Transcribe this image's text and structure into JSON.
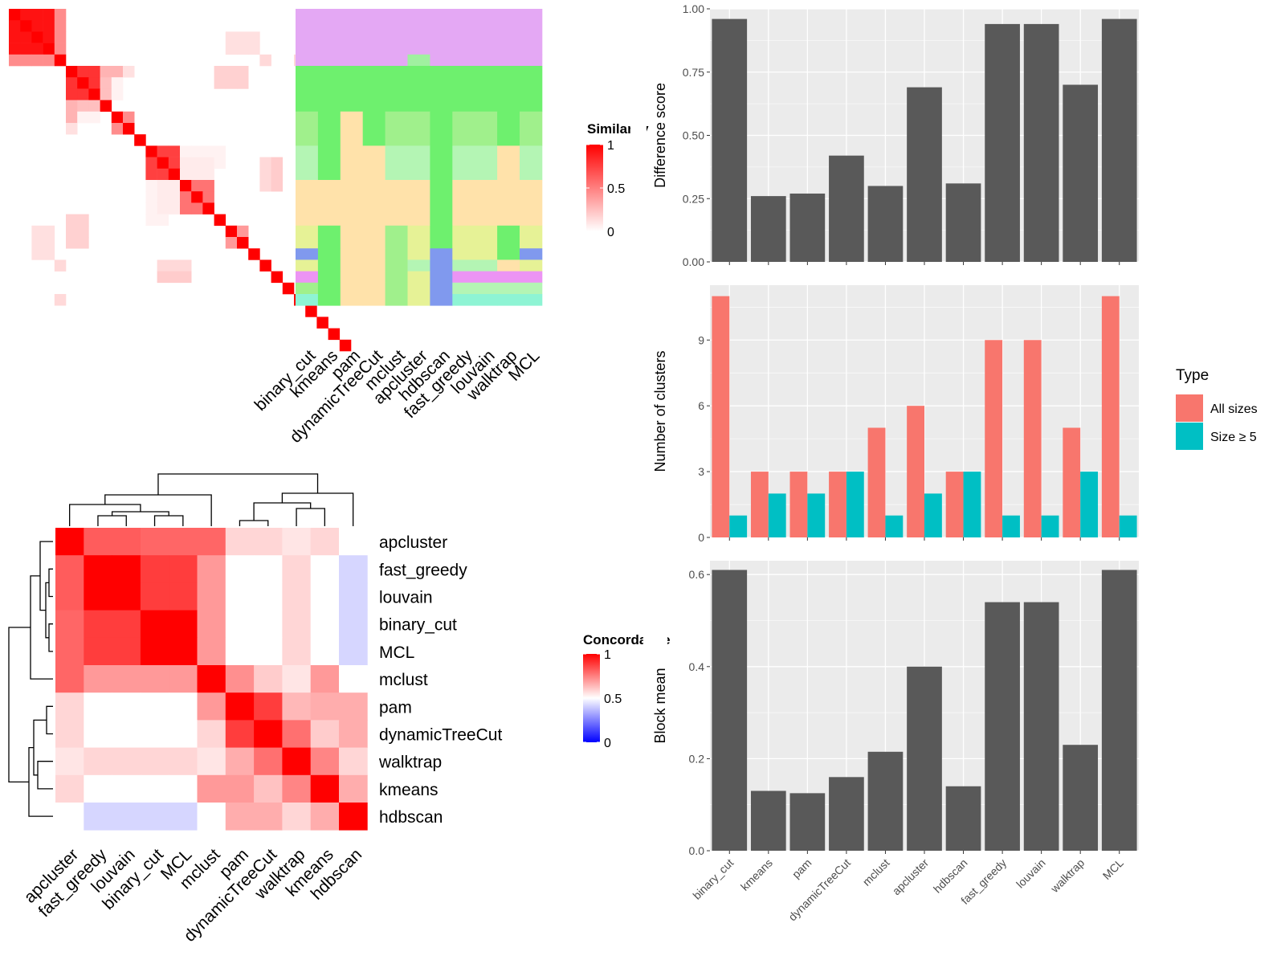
{
  "chart_data": [
    {
      "type": "heatmap",
      "panel": "similarity-matrix",
      "legend_title": "Similarity",
      "legend_ticks": [
        "1",
        "0.5",
        "0"
      ],
      "legend_range": [
        0,
        1
      ],
      "colors": {
        "high": "#ff0000",
        "low": "#ffffff"
      },
      "n": 30,
      "cell_order": "rows top to bottom, columns left to right",
      "blocks": [
        {
          "rows": [
            1,
            4
          ],
          "cols": [
            1,
            4
          ],
          "value": 0.93
        },
        {
          "rows": [
            5,
            5
          ],
          "cols": [
            1,
            4
          ],
          "value": 0.45
        },
        {
          "rows": [
            6,
            8
          ],
          "cols": [
            6,
            8
          ],
          "value": 0.8
        },
        {
          "rows": [
            6,
            6
          ],
          "cols": [
            9,
            10
          ],
          "value": 0.3
        },
        {
          "rows": [
            7,
            8
          ],
          "cols": [
            9,
            10
          ],
          "value": 0.05
        },
        {
          "rows": [
            9,
            9
          ],
          "cols": [
            6,
            8
          ],
          "value": 0.25
        },
        {
          "rows": [
            10,
            11
          ],
          "cols": [
            6,
            6
          ],
          "value": 0.12
        },
        {
          "rows": [
            10,
            10
          ],
          "cols": [
            11,
            11
          ],
          "value": 0.45
        },
        {
          "rows": [
            13,
            15
          ],
          "cols": [
            13,
            15
          ],
          "value": 0.75
        },
        {
          "rows": [
            14,
            15
          ],
          "cols": [
            16,
            18
          ],
          "value": 0.08
        },
        {
          "rows": [
            16,
            18
          ],
          "cols": [
            16,
            18
          ],
          "value": 0.55
        },
        {
          "rows": [
            16,
            19
          ],
          "cols": [
            13,
            14
          ],
          "value": 0.05
        },
        {
          "rows": [
            20,
            21
          ],
          "cols": [
            20,
            21
          ],
          "value": 0.4
        },
        {
          "rows": [
            20,
            22
          ],
          "cols": [
            3,
            4
          ],
          "value": 0.12
        },
        {
          "rows": [
            24,
            24
          ],
          "cols": [
            14,
            16
          ],
          "value": 0.2
        },
        {
          "rows": [
            6,
            7
          ],
          "cols": [
            19,
            21
          ],
          "value": 0.18
        },
        {
          "rows": [
            5,
            5
          ],
          "cols": [
            23,
            23
          ],
          "value": 0.15
        },
        {
          "rows": [
            14,
            16
          ],
          "cols": [
            23,
            23
          ],
          "value": 0.15
        },
        {
          "rows": [
            26,
            26
          ],
          "cols": [
            5,
            5
          ],
          "value": 0.15
        }
      ],
      "diagonal_value": 1
    },
    {
      "type": "heatmap",
      "panel": "membership-matrix",
      "columns": [
        "binary_cut",
        "kmeans",
        "pam",
        "dynamicTreeCut",
        "mclust",
        "apcluster",
        "hdbscan",
        "fast_greedy",
        "louvain",
        "walktrap",
        "MCL"
      ],
      "row_groups": [
        {
          "n": 4,
          "colors": [
            "#e4a8f4",
            "#e4a8f4",
            "#e4a8f4",
            "#e4a8f4",
            "#e4a8f4",
            "#e4a8f4",
            "#e4a8f4",
            "#e4a8f4",
            "#e4a8f4",
            "#e4a8f4",
            "#e4a8f4"
          ]
        },
        {
          "n": 1,
          "colors": [
            "#e4a8f4",
            "#e4a8f4",
            "#e4a8f4",
            "#e4a8f4",
            "#e4a8f4",
            "#a0f0a0",
            "#e4a8f4",
            "#e4a8f4",
            "#e4a8f4",
            "#e4a8f4",
            "#e4a8f4"
          ]
        },
        {
          "n": 4,
          "colors": [
            "#6ef06e",
            "#6ef06e",
            "#6ef06e",
            "#6ef06e",
            "#6ef06e",
            "#6ef06e",
            "#6ef06e",
            "#6ef06e",
            "#6ef06e",
            "#6ef06e",
            "#6ef06e"
          ]
        },
        {
          "n": 3,
          "colors": [
            "#a0f08c",
            "#6ef06e",
            "#ffe2aa",
            "#6ef06e",
            "#a0f08c",
            "#a0f08c",
            "#6ef06e",
            "#a0f08c",
            "#a0f08c",
            "#6ef06e",
            "#a0f08c"
          ]
        },
        {
          "n": 3,
          "colors": [
            "#b4f5b4",
            "#6ef06e",
            "#ffe2aa",
            "#ffe2aa",
            "#b4f5b4",
            "#b4f5b4",
            "#6ef06e",
            "#b4f5b4",
            "#b4f5b4",
            "#ffe2aa",
            "#b4f5b4"
          ]
        },
        {
          "n": 4,
          "colors": [
            "#ffe2aa",
            "#ffe2aa",
            "#ffe2aa",
            "#ffe2aa",
            "#ffe2aa",
            "#ffe2aa",
            "#6ef06e",
            "#ffe2aa",
            "#ffe2aa",
            "#ffe2aa",
            "#ffe2aa"
          ]
        },
        {
          "n": 2,
          "colors": [
            "#e6f296",
            "#6ef06e",
            "#ffe2aa",
            "#ffe2aa",
            "#a0f08c",
            "#e6f296",
            "#6ef06e",
            "#e6f296",
            "#e6f296",
            "#6ef06e",
            "#e6f296"
          ]
        },
        {
          "n": 1,
          "colors": [
            "#8099ee",
            "#6ef06e",
            "#ffe2aa",
            "#ffe2aa",
            "#a0f08c",
            "#e6f296",
            "#8099ee",
            "#e6f296",
            "#e6f296",
            "#6ef06e",
            "#8099ee"
          ]
        },
        {
          "n": 1,
          "colors": [
            "#e6f296",
            "#6ef06e",
            "#ffe2aa",
            "#ffe2aa",
            "#a0f08c",
            "#b4f5b4",
            "#8099ee",
            "#b4f5b4",
            "#b4f5b4",
            "#ffe2aa",
            "#e6f296"
          ]
        },
        {
          "n": 1,
          "colors": [
            "#ec94f4",
            "#6ef06e",
            "#ffe2aa",
            "#ffe2aa",
            "#a0f08c",
            "#e6f296",
            "#8099ee",
            "#ec94f4",
            "#ec94f4",
            "#ec94f4",
            "#ec94f4"
          ]
        },
        {
          "n": 1,
          "colors": [
            "#a0f08c",
            "#6ef06e",
            "#ffe2aa",
            "#ffe2aa",
            "#a0f08c",
            "#e6f296",
            "#8099ee",
            "#b4f5b4",
            "#b4f5b4",
            "#b4f5b4",
            "#b4f5b4"
          ]
        },
        {
          "n": 1,
          "colors": [
            "#8ef4d4",
            "#6ef06e",
            "#ffe2aa",
            "#ffe2aa",
            "#a0f08c",
            "#e6f296",
            "#8099ee",
            "#8ef4d4",
            "#8ef4d4",
            "#8ef4d4",
            "#8ef4d4"
          ]
        }
      ]
    },
    {
      "type": "heatmap",
      "panel": "concordance-matrix",
      "legend_title": "Concordance",
      "legend_ticks": [
        "1",
        "0.5",
        "0"
      ],
      "legend_range": [
        0,
        1
      ],
      "colors": {
        "high": "#ff0000",
        "mid": "#ffffff",
        "low": "#0000ff"
      },
      "labels": [
        "apcluster",
        "fast_greedy",
        "louvain",
        "binary_cut",
        "MCL",
        "mclust",
        "pam",
        "dynamicTreeCut",
        "walktrap",
        "kmeans",
        "hdbscan"
      ],
      "values": [
        [
          1.0,
          0.82,
          0.82,
          0.8,
          0.8,
          0.8,
          0.58,
          0.58,
          0.55,
          0.58,
          0.5
        ],
        [
          0.82,
          1.0,
          1.0,
          0.88,
          0.88,
          0.7,
          0.5,
          0.5,
          0.58,
          0.5,
          0.42
        ],
        [
          0.82,
          1.0,
          1.0,
          0.88,
          0.88,
          0.7,
          0.5,
          0.5,
          0.58,
          0.5,
          0.42
        ],
        [
          0.8,
          0.88,
          0.88,
          1.0,
          1.0,
          0.7,
          0.5,
          0.5,
          0.58,
          0.5,
          0.42
        ],
        [
          0.8,
          0.88,
          0.88,
          1.0,
          1.0,
          0.7,
          0.5,
          0.5,
          0.58,
          0.5,
          0.42
        ],
        [
          0.8,
          0.7,
          0.7,
          0.7,
          0.7,
          1.0,
          0.72,
          0.6,
          0.55,
          0.7,
          0.5
        ],
        [
          0.58,
          0.5,
          0.5,
          0.5,
          0.5,
          0.7,
          1.0,
          0.88,
          0.64,
          0.66,
          0.66
        ],
        [
          0.58,
          0.5,
          0.5,
          0.5,
          0.5,
          0.58,
          0.88,
          1.0,
          0.78,
          0.6,
          0.66
        ],
        [
          0.55,
          0.58,
          0.58,
          0.58,
          0.58,
          0.55,
          0.66,
          0.78,
          1.0,
          0.74,
          0.58
        ],
        [
          0.58,
          0.5,
          0.5,
          0.5,
          0.5,
          0.7,
          0.7,
          0.62,
          0.74,
          1.0,
          0.66
        ],
        [
          0.5,
          0.42,
          0.42,
          0.42,
          0.42,
          0.5,
          0.66,
          0.66,
          0.58,
          0.66,
          1.0
        ]
      ]
    },
    {
      "type": "bar",
      "panel": "difference-score",
      "categories": [
        "binary_cut",
        "kmeans",
        "pam",
        "dynamicTreeCut",
        "mclust",
        "apcluster",
        "hdbscan",
        "fast_greedy",
        "louvain",
        "walktrap",
        "MCL"
      ],
      "values": [
        0.96,
        0.26,
        0.27,
        0.42,
        0.3,
        0.69,
        0.31,
        0.94,
        0.94,
        0.7,
        0.96
      ],
      "ylabel": "Difference score",
      "ylim": [
        0,
        1.0
      ],
      "yticks": [
        0.0,
        0.25,
        0.5,
        0.75,
        1.0
      ],
      "ytick_labels": [
        "0.00",
        "0.25",
        "0.50",
        "0.75",
        "1.00"
      ],
      "bar_color": "#595959",
      "grid": true
    },
    {
      "type": "bar",
      "panel": "number-of-clusters",
      "categories": [
        "binary_cut",
        "kmeans",
        "pam",
        "dynamicTreeCut",
        "mclust",
        "apcluster",
        "hdbscan",
        "fast_greedy",
        "louvain",
        "walktrap",
        "MCL"
      ],
      "series": [
        {
          "name": "All sizes",
          "values": [
            11,
            3,
            3,
            3,
            5,
            6,
            3,
            9,
            9,
            5,
            11
          ],
          "color": "#f8766d"
        },
        {
          "name": "Size ≥ 5",
          "values": [
            1,
            2,
            2,
            3,
            1,
            2,
            3,
            1,
            1,
            3,
            1
          ],
          "color": "#00bfc4"
        }
      ],
      "ylabel": "Number of clusters",
      "ylim": [
        0,
        11.5
      ],
      "yticks": [
        0,
        3,
        6,
        9
      ],
      "legend_title": "Type",
      "legend_position": "right",
      "grid": true
    },
    {
      "type": "bar",
      "panel": "block-mean",
      "categories": [
        "binary_cut",
        "kmeans",
        "pam",
        "dynamicTreeCut",
        "mclust",
        "apcluster",
        "hdbscan",
        "fast_greedy",
        "louvain",
        "walktrap",
        "MCL"
      ],
      "values": [
        0.61,
        0.13,
        0.125,
        0.16,
        0.215,
        0.4,
        0.14,
        0.54,
        0.54,
        0.23,
        0.61
      ],
      "ylabel": "Block mean",
      "ylim": [
        0,
        0.63
      ],
      "yticks": [
        0.0,
        0.2,
        0.4,
        0.6
      ],
      "ytick_labels": [
        "0.0",
        "0.2",
        "0.4",
        "0.6"
      ],
      "bar_color": "#595959",
      "grid": true
    }
  ]
}
